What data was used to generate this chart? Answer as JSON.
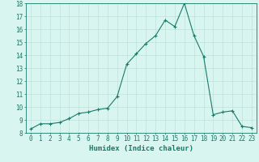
{
  "x": [
    0,
    1,
    2,
    3,
    4,
    5,
    6,
    7,
    8,
    9,
    10,
    11,
    12,
    13,
    14,
    15,
    16,
    17,
    18,
    19,
    20,
    21,
    22,
    23
  ],
  "y": [
    8.3,
    8.7,
    8.7,
    8.8,
    9.1,
    9.5,
    9.6,
    9.8,
    9.9,
    10.8,
    13.3,
    14.1,
    14.9,
    15.5,
    16.7,
    16.2,
    18.0,
    15.5,
    13.9,
    9.4,
    9.6,
    9.7,
    8.5,
    8.4
  ],
  "line_color": "#1a7a6a",
  "marker": "+",
  "marker_size": 3,
  "bg_color": "#d8f5f0",
  "grid_color": "#b8ddd8",
  "xlabel": "Humidex (Indice chaleur)",
  "ylabel": "",
  "ylim": [
    8,
    18
  ],
  "xlim": [
    -0.5,
    23.5
  ],
  "yticks": [
    8,
    9,
    10,
    11,
    12,
    13,
    14,
    15,
    16,
    17,
    18
  ],
  "xticks": [
    0,
    1,
    2,
    3,
    4,
    5,
    6,
    7,
    8,
    9,
    10,
    11,
    12,
    13,
    14,
    15,
    16,
    17,
    18,
    19,
    20,
    21,
    22,
    23
  ],
  "tick_fontsize": 5.5,
  "xlabel_fontsize": 6.5
}
